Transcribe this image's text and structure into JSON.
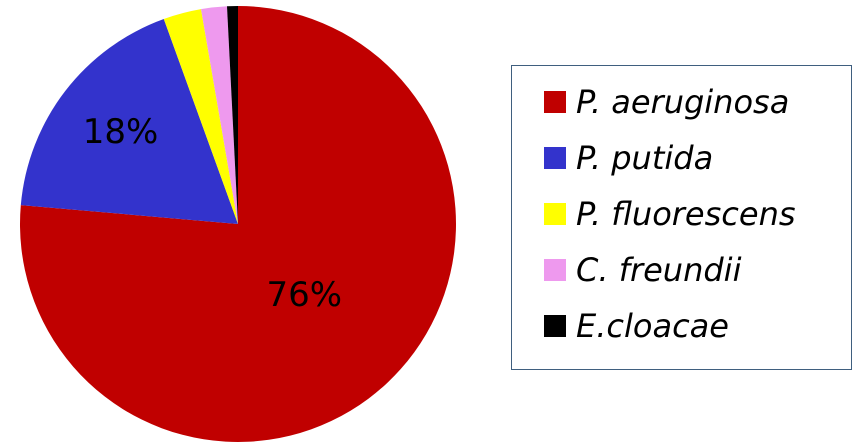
{
  "chart_data": {
    "type": "pie",
    "title": "",
    "legend_position": "right",
    "start_angle": "top, clockwise",
    "slices": [
      {
        "label": "P. aeruginosa",
        "value": 76,
        "color": "#c00000",
        "data_label": "76%"
      },
      {
        "label": "P. putida",
        "value": 18,
        "color": "#3333cc",
        "data_label": "18%"
      },
      {
        "label": "P. fluorescens",
        "value": 2.8,
        "color": "#ffff00",
        "data_label": ""
      },
      {
        "label": "C. freundii",
        "value": 1.9,
        "color": "#ee99ee",
        "data_label": ""
      },
      {
        "label": "E.cloacae",
        "value": 0.8,
        "color": "#000000",
        "data_label": ""
      }
    ]
  },
  "legend": {
    "items": [
      {
        "label": "P. aeruginosa",
        "color": "#c00000"
      },
      {
        "label": "P. putida",
        "color": "#3333cc"
      },
      {
        "label": "P. fluorescens",
        "color": "#ffff00"
      },
      {
        "label": "C. freundii",
        "color": "#ee99ee"
      },
      {
        "label": "E.cloacae",
        "color": "#000000"
      }
    ]
  }
}
